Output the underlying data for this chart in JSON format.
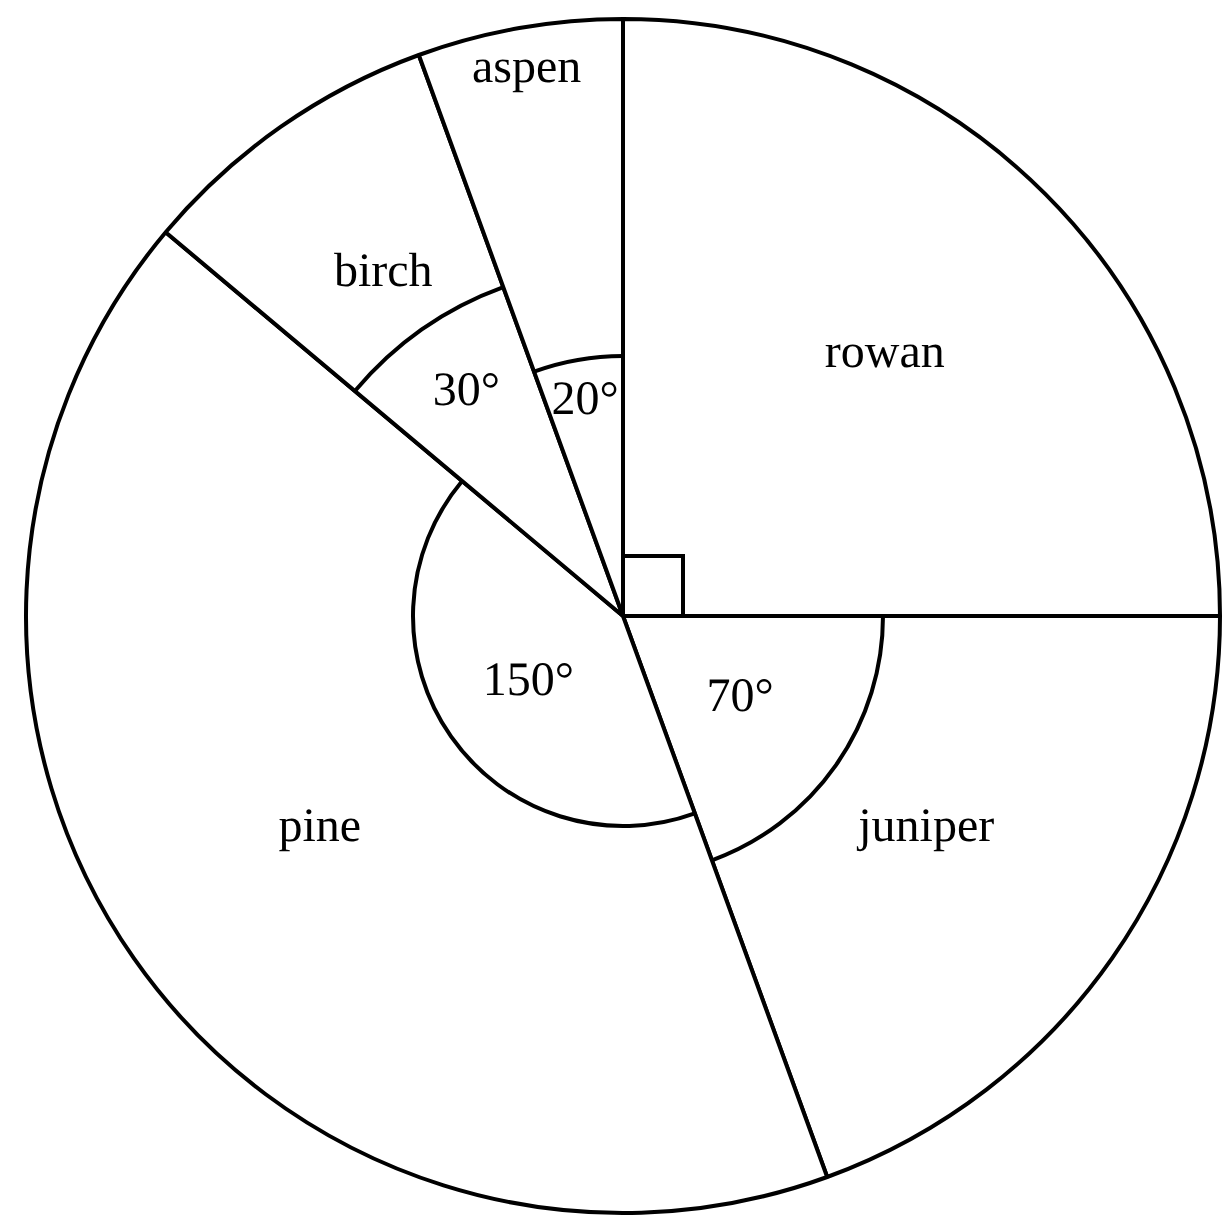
{
  "chart_data": {
    "type": "pie",
    "categories": [
      "rowan",
      "juniper",
      "pine",
      "birch",
      "aspen"
    ],
    "values": [
      90,
      70,
      150,
      30,
      20
    ],
    "colors": [
      "#ffffff",
      "#ffffff",
      "#ffffff",
      "#ffffff",
      "#ffffff"
    ],
    "value_labels": [
      null,
      "70°",
      "150°",
      "30°",
      "20°"
    ],
    "legend": false
  }
}
